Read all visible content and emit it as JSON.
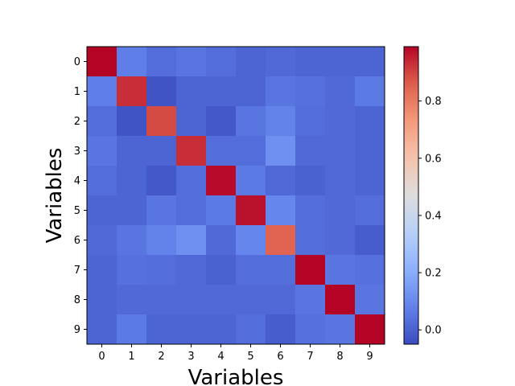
{
  "chart_data": {
    "type": "heatmap",
    "title": "",
    "xlabel": "Variables",
    "ylabel": "Variables",
    "x_categories": [
      "0",
      "1",
      "2",
      "3",
      "4",
      "5",
      "6",
      "7",
      "8",
      "9"
    ],
    "y_categories": [
      "0",
      "1",
      "2",
      "3",
      "4",
      "5",
      "6",
      "7",
      "8",
      "9"
    ],
    "colormap": "coolwarm",
    "vmin": -0.05,
    "vmax": 0.99,
    "colorbar_ticks": [
      "0.0",
      "0.2",
      "0.4",
      "0.6",
      "0.8"
    ],
    "colorbar_tick_values": [
      0.0,
      0.2,
      0.4,
      0.6,
      0.8
    ],
    "grid": false,
    "values": [
      [
        0.99,
        0.07,
        0.03,
        0.05,
        0.03,
        0.01,
        0.02,
        0.01,
        0.01,
        0.01
      ],
      [
        0.07,
        0.93,
        -0.03,
        0.01,
        0.01,
        0.01,
        0.05,
        0.04,
        0.02,
        0.06
      ],
      [
        0.03,
        -0.03,
        0.89,
        0.01,
        -0.02,
        0.05,
        0.08,
        0.03,
        0.02,
        0.01
      ],
      [
        0.05,
        0.01,
        0.01,
        0.93,
        0.03,
        0.03,
        0.12,
        0.02,
        0.02,
        0.01
      ],
      [
        0.03,
        0.01,
        -0.02,
        0.03,
        0.98,
        0.06,
        0.02,
        0.0,
        0.02,
        0.01
      ],
      [
        0.01,
        0.01,
        0.05,
        0.03,
        0.06,
        0.97,
        0.09,
        0.03,
        0.02,
        0.03
      ],
      [
        0.02,
        0.05,
        0.08,
        0.12,
        0.02,
        0.09,
        0.85,
        0.03,
        0.02,
        -0.01
      ],
      [
        0.01,
        0.04,
        0.03,
        0.02,
        0.0,
        0.03,
        0.03,
        0.99,
        0.05,
        0.04
      ],
      [
        0.01,
        0.02,
        0.02,
        0.02,
        0.02,
        0.02,
        0.02,
        0.05,
        0.99,
        0.05
      ],
      [
        0.01,
        0.06,
        0.01,
        0.01,
        0.01,
        0.03,
        -0.01,
        0.04,
        0.05,
        0.99
      ]
    ]
  }
}
